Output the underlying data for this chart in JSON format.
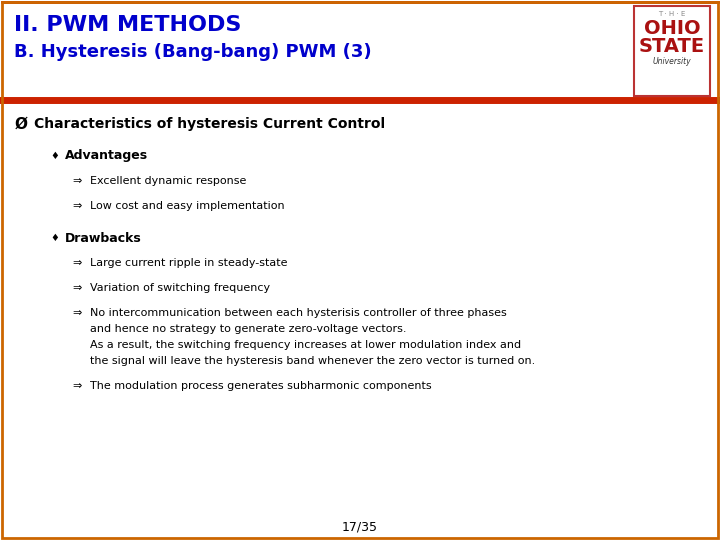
{
  "title_line1": "II. PWM METHODS",
  "title_line2": "B. Hysteresis (Bang-bang) PWM (3)",
  "title_line1_color": "#0000cc",
  "title_line2_color": "#0000cc",
  "header_separator_color": "#cc2200",
  "body_bg": "#ffffff",
  "main_bullet": "Characteristics of hysteresis Current Control",
  "sub1_label": "Advantages",
  "sub1_items": [
    "Excellent dynamic response",
    "Low cost and easy implementation"
  ],
  "sub2_label": "Drawbacks",
  "sub2_items": [
    [
      "Large current ripple in steady-state"
    ],
    [
      "Variation of switching frequency"
    ],
    [
      "No intercommunication between each hysterisis controller of three phases",
      "and hence no strategy to generate zero-voltage vectors.",
      "As a result, the switching frequency increases at lower modulation index and",
      "the signal will leave the hysteresis band whenever the zero vector is turned on."
    ],
    [
      "The modulation process generates subharmonic components"
    ]
  ],
  "footer_text": "17/35",
  "logo_border_color": "#bb3333",
  "ohio_text_color": "#aa1111",
  "ohio_label_color": "#aa1111",
  "univ_text_color": "#333333",
  "text_color_dark": "#000000",
  "header_top_border_color": "#cc2200",
  "outer_border_color": "#cc6600"
}
